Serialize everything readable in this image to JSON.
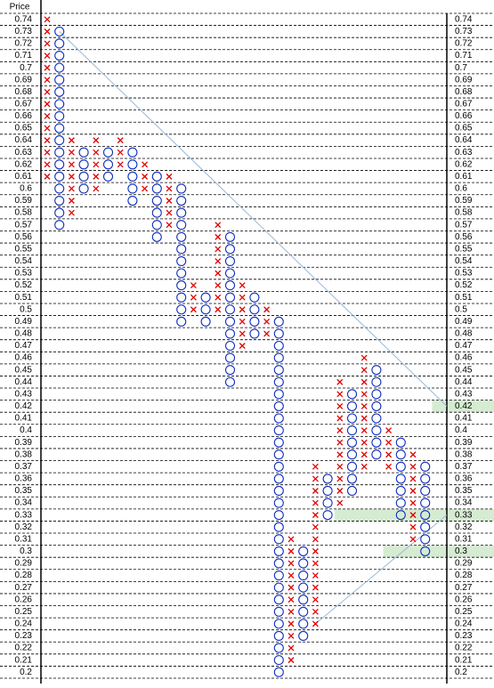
{
  "chart_data": {
    "type": "point_and_figure",
    "y_label": "Price",
    "yticks": [
      0.74,
      0.73,
      0.72,
      0.71,
      0.7,
      0.69,
      0.68,
      0.67,
      0.66,
      0.65,
      0.64,
      0.63,
      0.62,
      0.61,
      0.6,
      0.59,
      0.58,
      0.57,
      0.56,
      0.55,
      0.54,
      0.53,
      0.52,
      0.51,
      0.5,
      0.49,
      0.48,
      0.47,
      0.46,
      0.45,
      0.44,
      0.43,
      0.42,
      0.41,
      0.4,
      0.39,
      0.38,
      0.37,
      0.36,
      0.35,
      0.34,
      0.33,
      0.32,
      0.31,
      0.3,
      0.29,
      0.28,
      0.27,
      0.26,
      0.25,
      0.24,
      0.23,
      0.22,
      0.21,
      0.2
    ],
    "x_color": "#e00000",
    "o_color": "#1030c0",
    "columns": [
      {
        "type": "X",
        "high": 0.74,
        "low": 0.61
      },
      {
        "type": "O",
        "high": 0.73,
        "low": 0.57
      },
      {
        "type": "X",
        "high": 0.64,
        "low": 0.58
      },
      {
        "type": "O",
        "high": 0.63,
        "low": 0.6
      },
      {
        "type": "X",
        "high": 0.64,
        "low": 0.6
      },
      {
        "type": "O",
        "high": 0.63,
        "low": 0.61
      },
      {
        "type": "X",
        "high": 0.64,
        "low": 0.62
      },
      {
        "type": "O",
        "high": 0.63,
        "low": 0.59
      },
      {
        "type": "X",
        "high": 0.62,
        "low": 0.6
      },
      {
        "type": "O",
        "high": 0.61,
        "low": 0.56
      },
      {
        "type": "X",
        "high": 0.61,
        "low": 0.57
      },
      {
        "type": "O",
        "high": 0.6,
        "low": 0.49
      },
      {
        "type": "X",
        "high": 0.52,
        "low": 0.5
      },
      {
        "type": "O",
        "high": 0.51,
        "low": 0.49
      },
      {
        "type": "X",
        "high": 0.57,
        "low": 0.5
      },
      {
        "type": "O",
        "high": 0.56,
        "low": 0.44
      },
      {
        "type": "X",
        "high": 0.52,
        "low": 0.47
      },
      {
        "type": "O",
        "high": 0.51,
        "low": 0.48
      },
      {
        "type": "X",
        "high": 0.5,
        "low": 0.48
      },
      {
        "type": "O",
        "high": 0.49,
        "low": 0.2
      },
      {
        "type": "X",
        "high": 0.31,
        "low": 0.21
      },
      {
        "type": "O",
        "high": 0.3,
        "low": 0.23
      },
      {
        "type": "X",
        "high": 0.37,
        "low": 0.24
      },
      {
        "type": "O",
        "high": 0.36,
        "low": 0.33
      },
      {
        "type": "X",
        "high": 0.44,
        "low": 0.34
      },
      {
        "type": "O",
        "high": 0.43,
        "low": 0.35
      },
      {
        "type": "X",
        "high": 0.46,
        "low": 0.37
      },
      {
        "type": "O",
        "high": 0.45,
        "low": 0.38
      },
      {
        "type": "X",
        "high": 0.4,
        "low": 0.37
      },
      {
        "type": "O",
        "high": 0.39,
        "low": 0.33
      },
      {
        "type": "X",
        "high": 0.38,
        "low": 0.31
      },
      {
        "type": "O",
        "high": 0.37,
        "low": 0.3
      }
    ],
    "trend_lines": [
      {
        "start_column": 1,
        "start_price": 0.73,
        "end_price": 0.42
      },
      {
        "start_column": 22,
        "start_price": 0.24,
        "end_price": 0.33
      }
    ],
    "highlights": [
      {
        "price": 0.42,
        "from_column": 32
      },
      {
        "price": 0.33,
        "from_column": 24
      },
      {
        "price": 0.3,
        "from_column": 28
      }
    ]
  }
}
